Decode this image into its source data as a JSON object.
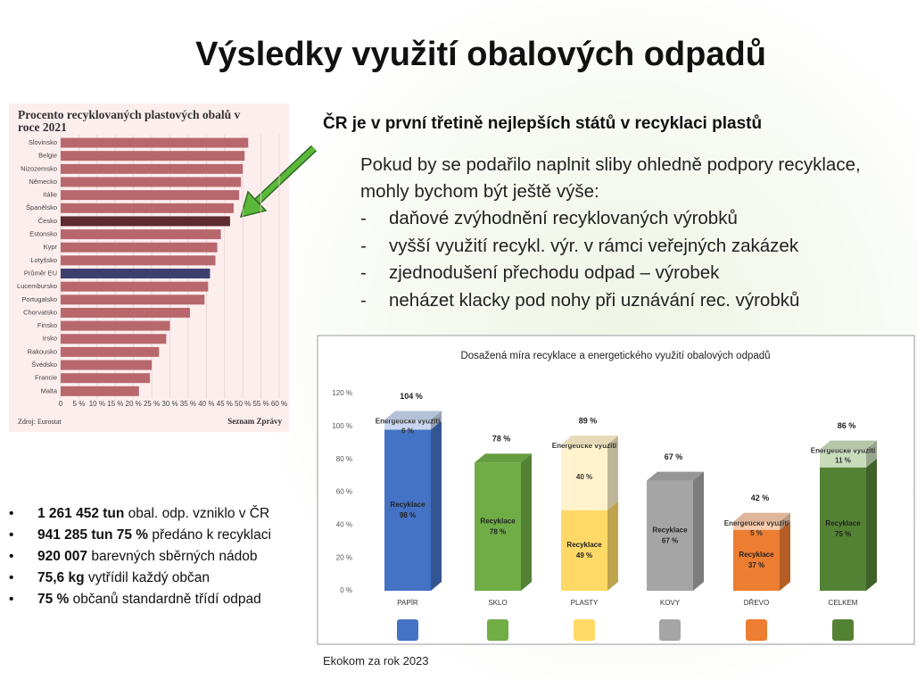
{
  "header": {
    "title": "Výsledky využití obalových odpadů"
  },
  "chart_data": [
    {
      "type": "hbar",
      "title": "Procento recyklovaných plastových obalů v roce 2021",
      "categories": [
        "Slovinsko",
        "Belgie",
        "Nizozemsko",
        "Německo",
        "Itálie",
        "Španělsko",
        "Česko",
        "Estonsko",
        "Kypr",
        "Lotyšsko",
        "Průměr EU",
        "Lucembursko",
        "Portugalsko",
        "Chorvatsko",
        "Finsko",
        "Irsko",
        "Rakousko",
        "Švédsko",
        "Francie",
        "Malta"
      ],
      "values": [
        51.5,
        50.5,
        50,
        49.5,
        49,
        47.5,
        46.5,
        44,
        43,
        42.5,
        41,
        40.5,
        39.5,
        35.5,
        30,
        29,
        27,
        25,
        24.5,
        21.5
      ],
      "colors": [
        "#b8686d",
        "#b8686d",
        "#b8686d",
        "#b8686d",
        "#b8686d",
        "#b8686d",
        "#5c2a2f",
        "#b8686d",
        "#b8686d",
        "#b8686d",
        "#3d3f6e",
        "#b8686d",
        "#b8686d",
        "#b8686d",
        "#b8686d",
        "#b8686d",
        "#b8686d",
        "#b8686d",
        "#b8686d",
        "#b8686d"
      ],
      "xlim": [
        0,
        60
      ],
      "xticks": [
        0,
        {
          "value": 5,
          "label": "5 %"
        },
        {
          "value": 10,
          "label": "10 %"
        },
        {
          "value": 15,
          "label": "15 %"
        },
        {
          "value": 20,
          "label": "20 %"
        },
        {
          "value": 25,
          "label": "25 %"
        },
        {
          "value": 30,
          "label": "30 %"
        },
        {
          "value": 35,
          "label": "35 %"
        },
        {
          "value": 40,
          "label": "40 %"
        },
        {
          "value": 45,
          "label": "45 %"
        },
        {
          "value": 50,
          "label": "50 %"
        },
        {
          "value": 55,
          "label": "55 %"
        },
        {
          "value": 60,
          "label": "60 %"
        }
      ],
      "grid": true,
      "source": "Zdroj: Eurostat",
      "publisher": "Seznam Zprávy"
    },
    {
      "type": "stacked3d",
      "title": "Dosažená míra recyklace a energetického využití obalových odpadů",
      "categories": [
        "PAPÍR",
        "SKLO",
        "PLASTY",
        "KOVY",
        "DŘEVO",
        "CELKEM"
      ],
      "series": [
        {
          "name": "Recyklace",
          "colors": [
            "#4472c4",
            "#70ad47",
            "#ffd966",
            "#a5a5a5",
            "#ed7d31",
            "#548235"
          ],
          "values": [
            98,
            78,
            49,
            67,
            37,
            75
          ],
          "value_labels": [
            "98 %",
            "78 %",
            "49 %",
            "67 %",
            "37 %",
            "75 %"
          ]
        },
        {
          "name": "Energetické využití",
          "colors": [
            "#c9d6ef",
            "#d5e8c9",
            "#fff2cc",
            "#e0e0e0",
            "#f8cbad",
            "#c9dcbc"
          ],
          "values": [
            6,
            null,
            40,
            null,
            5,
            11
          ],
          "value_labels": [
            "6 %",
            null,
            "40 %",
            null,
            "5 %",
            "11 %"
          ]
        }
      ],
      "totals": [
        104,
        78,
        89,
        67,
        42,
        86
      ],
      "total_labels": [
        "104 %",
        "78 %",
        "89 %",
        "67 %",
        "42 %",
        "86 %"
      ],
      "ylim": [
        0,
        120
      ],
      "yticks": [
        {
          "value": 0,
          "label": "0 %"
        },
        {
          "value": 20,
          "label": "20 %"
        },
        {
          "value": 40,
          "label": "40 %"
        },
        {
          "value": 60,
          "label": "60 %"
        },
        {
          "value": 80,
          "label": "80 %"
        },
        {
          "value": 100,
          "label": "100 %"
        },
        {
          "value": 120,
          "label": "120 %"
        }
      ],
      "grid": false
    }
  ],
  "claim": {
    "heading": "ČR je v první třetině nejlepších států v recyklaci plastů",
    "intro": "Pokud by se podařilo naplnit sliby ohledně podpory recyklace, mohly bychom být ještě výše:",
    "items": [
      "daňové zvýhodnění recyklovaných výrobků",
      "vyšší využití recykl. výr. v rámci veřejných zakázek",
      "zjednodušení přechodu odpad – výrobek",
      "neházet klacky pod nohy při uznávání rec. výrobků"
    ]
  },
  "stats": [
    {
      "bold": "1 261 452 tun",
      "text": "obal. odp. vzniklo v ČR"
    },
    {
      "bold": "941 285 tun 75 %",
      "text": "předáno k recyklaci"
    },
    {
      "bold": "920 007",
      "text": "barevných sběrných nádob"
    },
    {
      "bold": "75,6 kg",
      "text": "vytřídil každý občan"
    },
    {
      "bold": "75 %",
      "text": "občanů standardně třídí odpad"
    }
  ],
  "source": "Ekokom za rok 2023"
}
